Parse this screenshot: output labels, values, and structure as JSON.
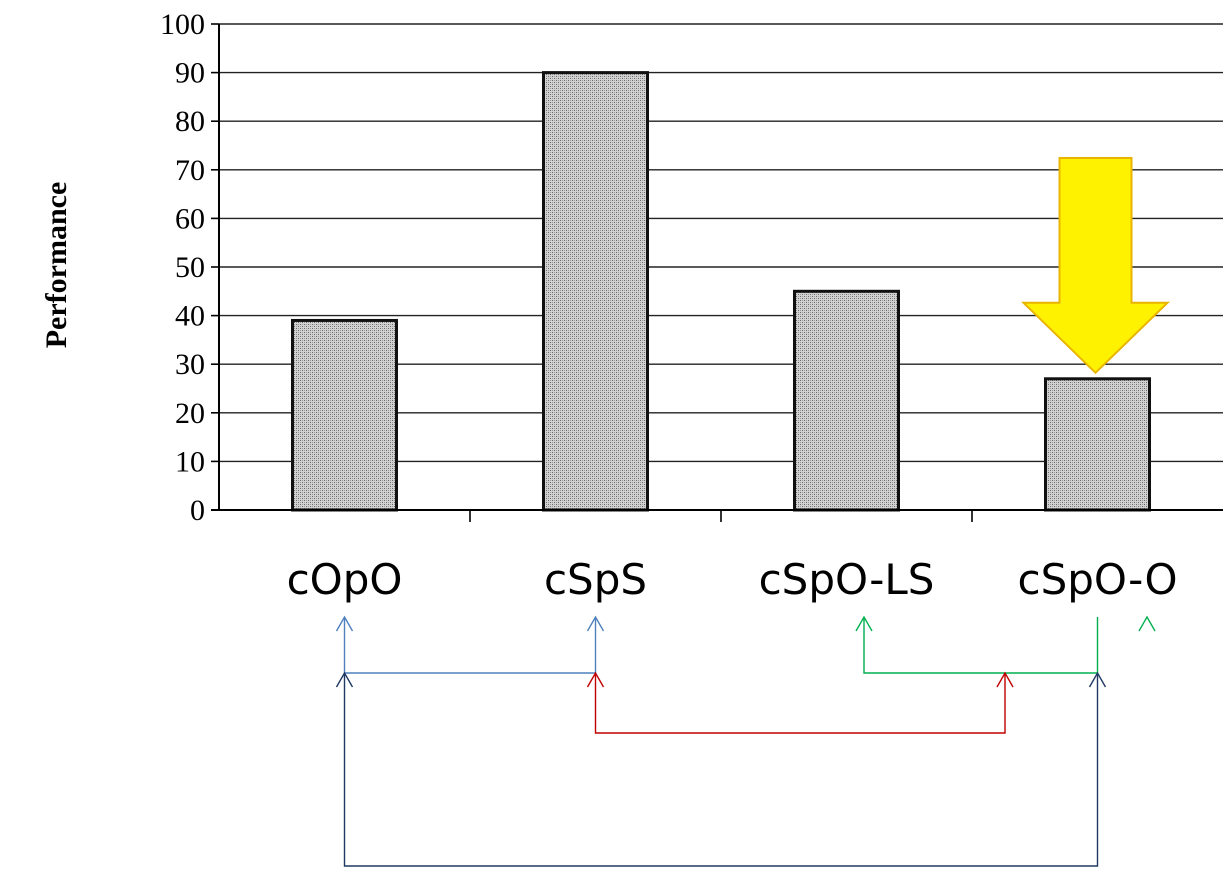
{
  "chart_data": {
    "type": "bar",
    "title": "",
    "xlabel": "",
    "ylabel": "Performance",
    "ylim": [
      0,
      100
    ],
    "yticks": [
      0,
      10,
      20,
      30,
      40,
      50,
      60,
      70,
      80,
      90,
      100
    ],
    "grid": true,
    "categories": [
      "cOpO",
      "cSpS",
      "cSpO-LS",
      "cSpO-O"
    ],
    "values": [
      39,
      90,
      45,
      27
    ],
    "highlight": {
      "category": "cSpO-O",
      "marker": "arrow-down-icon",
      "color": "#FFF200"
    },
    "comparisons": [
      {
        "from": "cOpO",
        "to": "cSpS",
        "color": "#4F81BD"
      },
      {
        "from": "cSpO-LS",
        "to": "cSpO-O",
        "color": "#00B050"
      },
      {
        "from": "cSpS",
        "to": "cSpO-O",
        "color": "#C00000"
      },
      {
        "from": "cOpO",
        "to": "cSpO-O",
        "color": "#1F3864"
      }
    ]
  }
}
